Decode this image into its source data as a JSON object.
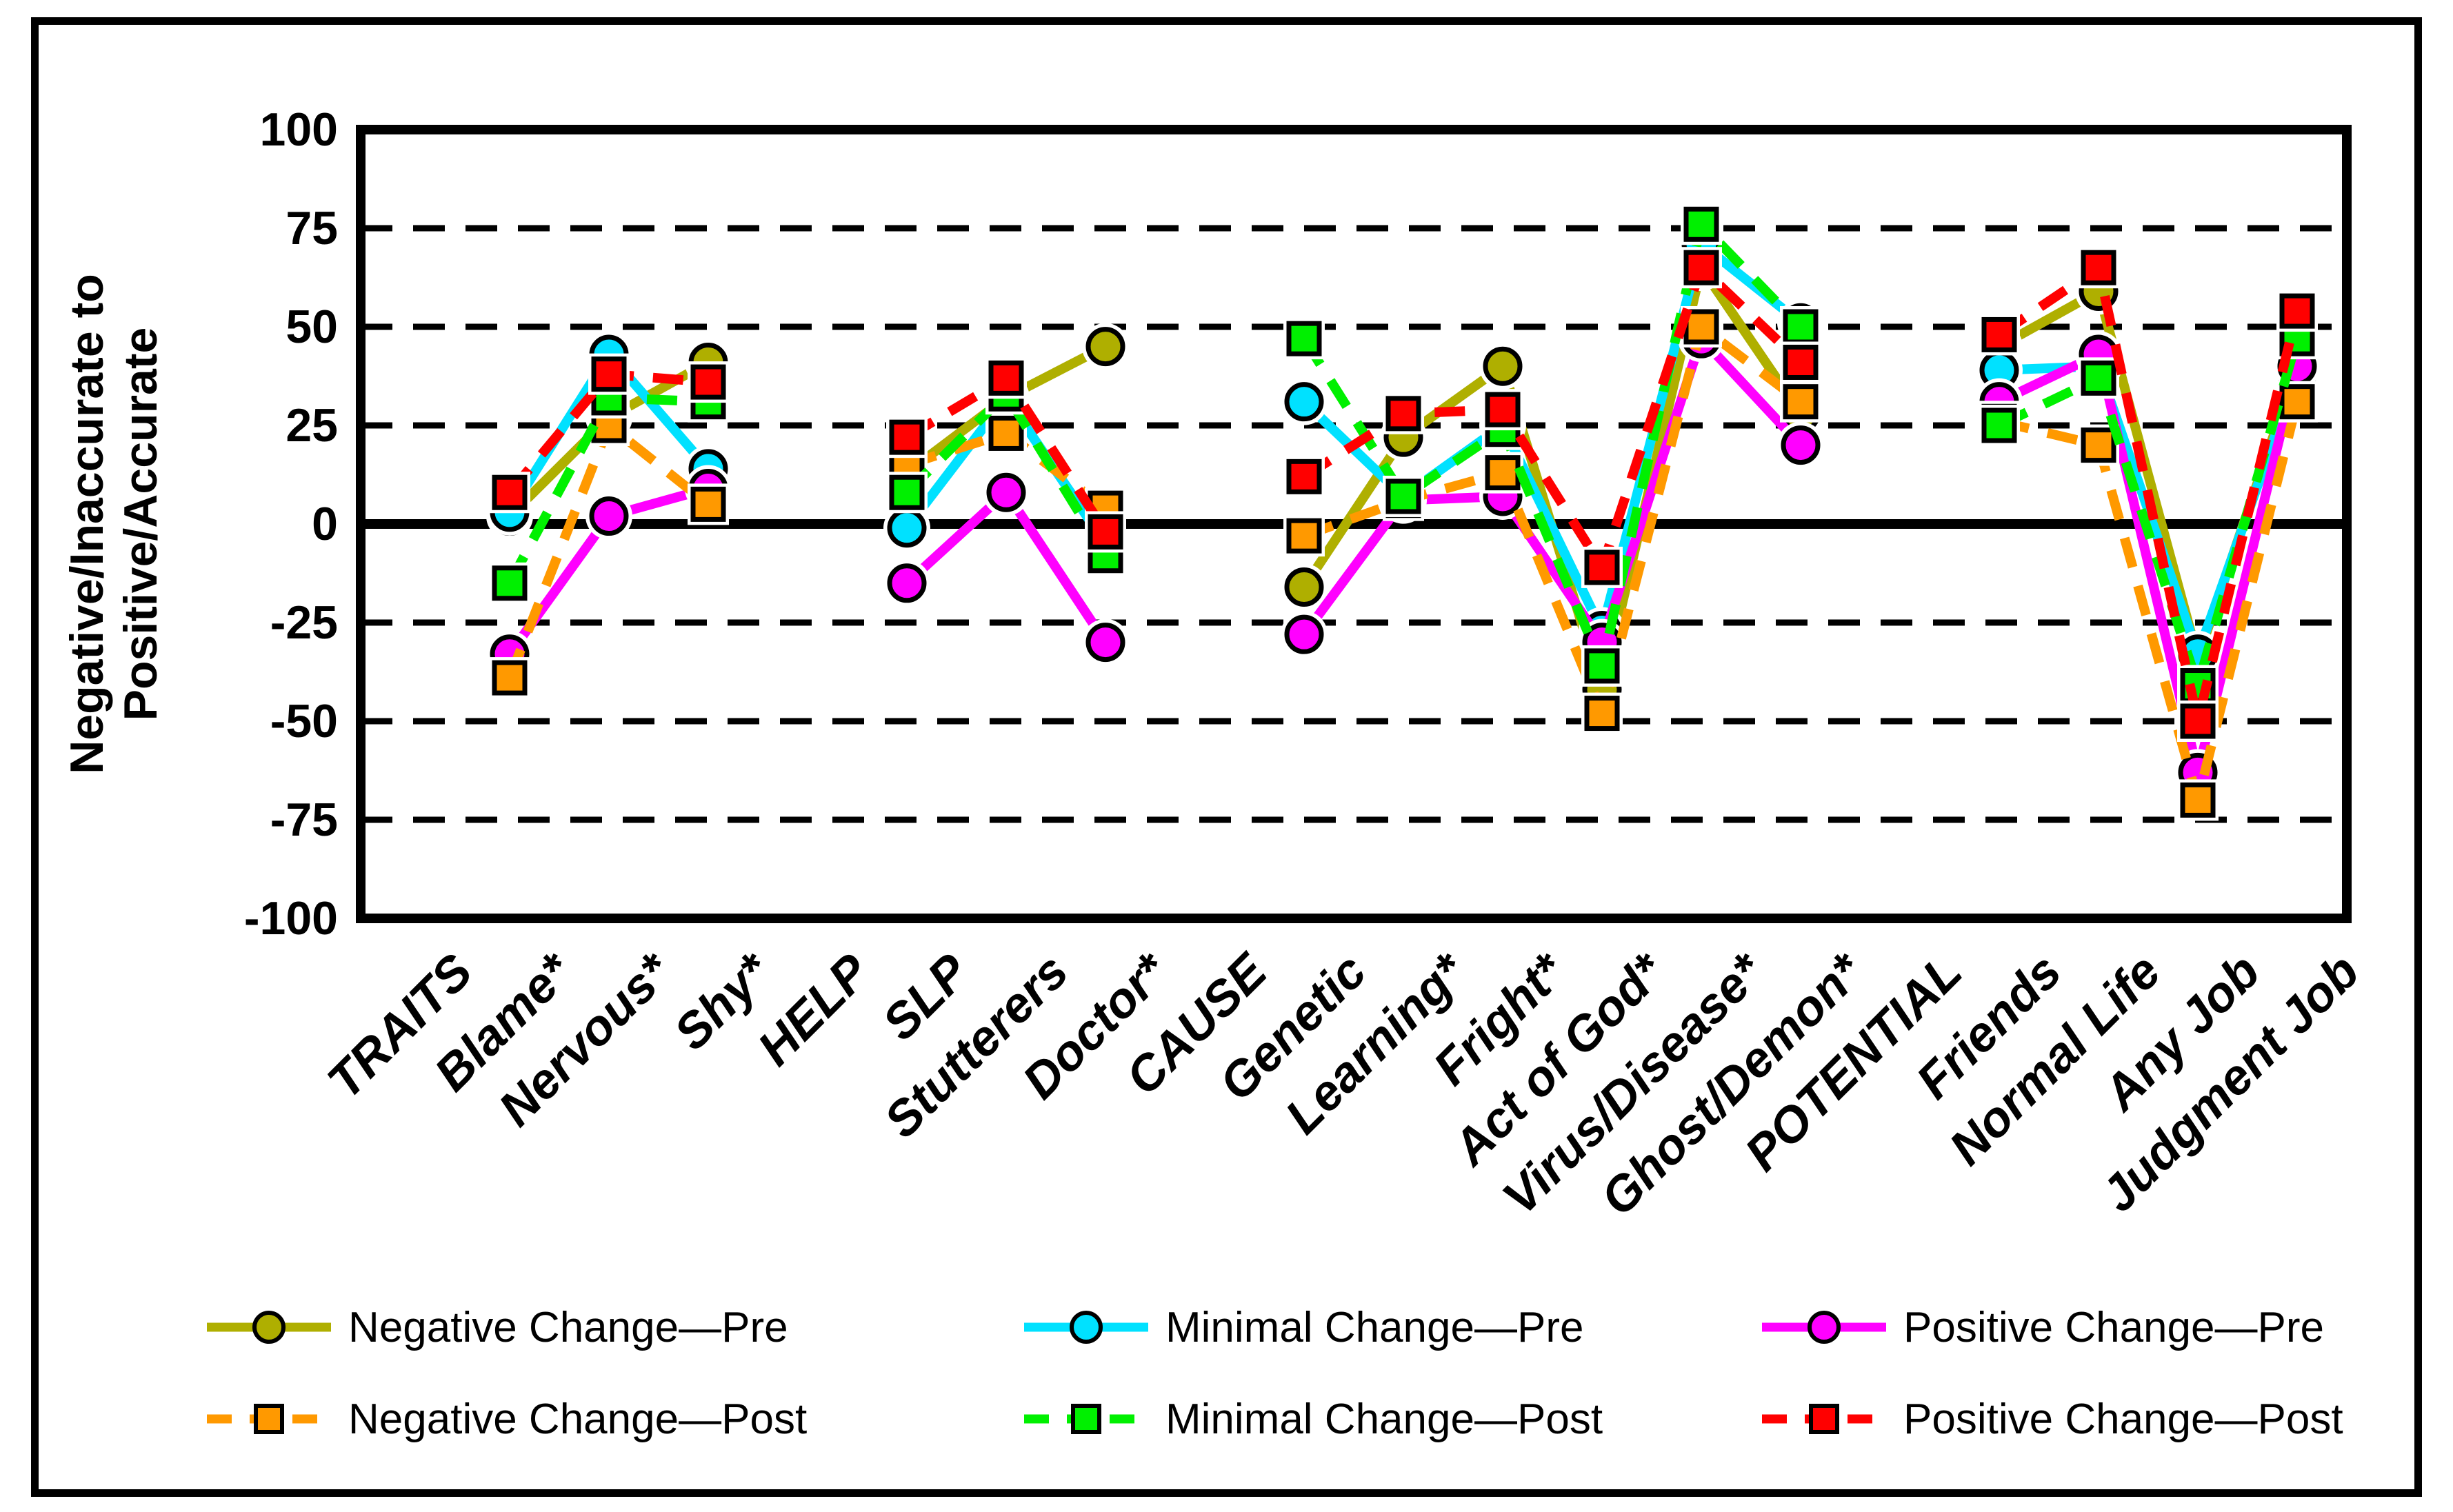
{
  "figure": {
    "background": "#FFFFFF",
    "border_color": "#000000"
  },
  "y_axis": {
    "title_line1": "Negative/Inaccurate to",
    "title_line2": "Positive/Accurate",
    "min": -100,
    "max": 100,
    "tick_interval": 25,
    "tick_labels": [
      "100",
      "75",
      "50",
      "25",
      "0",
      "-25",
      "-50",
      "-75",
      "-100"
    ]
  },
  "chart_data": {
    "type": "line",
    "title": "",
    "xlabel": "",
    "ylabel": "Negative/Inaccurate to Positive/Accurate",
    "ylim": [
      -100,
      100
    ],
    "grid": "horizontal dashed every 25, solid line at 0",
    "legend_position": "bottom",
    "categories": [
      "TRAITS",
      "Blame*",
      "Nervous*",
      "Shy*",
      "HELP",
      "SLP",
      "Stutterers",
      "Doctor*",
      "CAUSE",
      "Genetic",
      "Learning*",
      "Fright*",
      "Act of God*",
      "Virus/Disease*",
      "Ghost/Demon*",
      "POTENTIAL",
      "Friends",
      "Normal Life",
      "Any Job",
      "Judgment Job"
    ],
    "section_headers_without_data": [
      "TRAITS",
      "HELP",
      "CAUSE",
      "POTENTIAL"
    ],
    "series": [
      {
        "name": "Negative Change—Pre",
        "color": "#AFAF00",
        "marker": "circle",
        "line_style": "solid",
        "values": [
          null,
          2,
          27,
          41,
          null,
          13,
          32,
          45,
          null,
          -16,
          22,
          40,
          -42,
          65,
          28,
          null,
          45,
          59,
          -34,
          40
        ]
      },
      {
        "name": "Minimal Change—Pre",
        "color": "#00E1FF",
        "marker": "circle",
        "line_style": "solid",
        "values": [
          null,
          3,
          43,
          14,
          null,
          -1,
          32,
          -5,
          null,
          31,
          7,
          25,
          -27,
          71,
          51,
          null,
          39,
          40,
          -33,
          38
        ]
      },
      {
        "name": "Positive Change—Pre",
        "color": "#FF00FF",
        "marker": "circle",
        "line_style": "solid",
        "values": [
          null,
          -33,
          2,
          9,
          null,
          -15,
          8,
          -30,
          null,
          -28,
          6,
          7,
          -30,
          47,
          20,
          null,
          31,
          43,
          -63,
          40
        ]
      },
      {
        "name": "Negative Change—Post",
        "color": "#FF9900",
        "marker": "square",
        "line_style": "dashed",
        "values": [
          null,
          -39,
          25,
          5,
          null,
          15,
          23,
          4,
          null,
          -3,
          6,
          13,
          -48,
          50,
          31,
          null,
          26,
          20,
          -70,
          31
        ]
      },
      {
        "name": "Minimal Change—Post",
        "color": "#00F000",
        "marker": "square",
        "line_style": "dashed",
        "values": [
          null,
          -15,
          32,
          31,
          null,
          8,
          33,
          -8,
          null,
          47,
          7,
          24,
          -36,
          76,
          50,
          null,
          25,
          37,
          -41,
          47
        ]
      },
      {
        "name": "Positive Change—Post",
        "color": "#FF0000",
        "marker": "square",
        "line_style": "dashed",
        "values": [
          null,
          8,
          38,
          36,
          null,
          22,
          37,
          -2,
          null,
          12,
          28,
          29,
          -11,
          65,
          41,
          null,
          48,
          65,
          -50,
          54
        ]
      }
    ]
  },
  "legend": {
    "rows": [
      [
        "Negative Change—Pre",
        "Minimal Change—Pre",
        "Positive Change—Pre"
      ],
      [
        "Negative Change—Post",
        "Minimal Change—Post",
        "Positive Change—Post"
      ]
    ]
  }
}
